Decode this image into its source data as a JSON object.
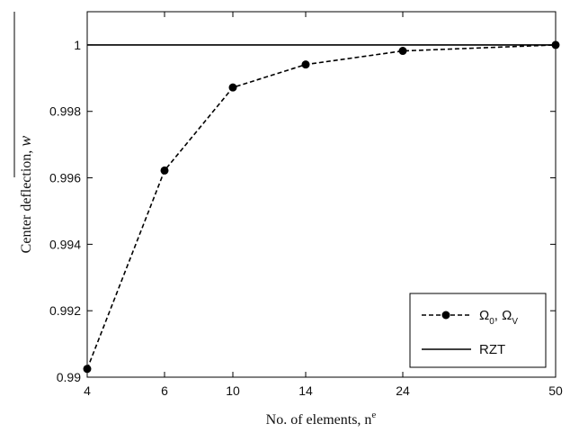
{
  "chart_data": {
    "type": "line",
    "title": "",
    "xlabel": "No. of elements, n",
    "xlabel_superscript": "e",
    "ylabel": "Center deflection, ",
    "ylabel_symbol": "w",
    "x_ticks": [
      4,
      6,
      10,
      14,
      24,
      50
    ],
    "x_scale": "categorical-positions",
    "y_ticks": [
      "0.99",
      "0.992",
      "0.994",
      "0.996",
      "0.998",
      "1"
    ],
    "ylim": [
      0.99,
      1.001
    ],
    "grid": false,
    "legend": {
      "placement": "bottom-right",
      "entries": [
        {
          "label_parts": [
            {
              "text": "Ω",
              "sub": "0"
            },
            {
              "text": ", Ω",
              "sub": "V"
            }
          ],
          "style": "dashed-with-markers"
        },
        {
          "label": "RZT",
          "style": "solid"
        }
      ]
    },
    "series": [
      {
        "style": "dashed-with-markers",
        "color": "#000000",
        "x": [
          4,
          6,
          10,
          14,
          24,
          50
        ],
        "y": [
          0.99025,
          0.99622,
          0.99872,
          0.99941,
          0.99982,
          1.0
        ]
      },
      {
        "style": "solid",
        "color": "#000000",
        "x": [
          4,
          50
        ],
        "y": [
          1.0,
          1.0
        ]
      }
    ]
  }
}
